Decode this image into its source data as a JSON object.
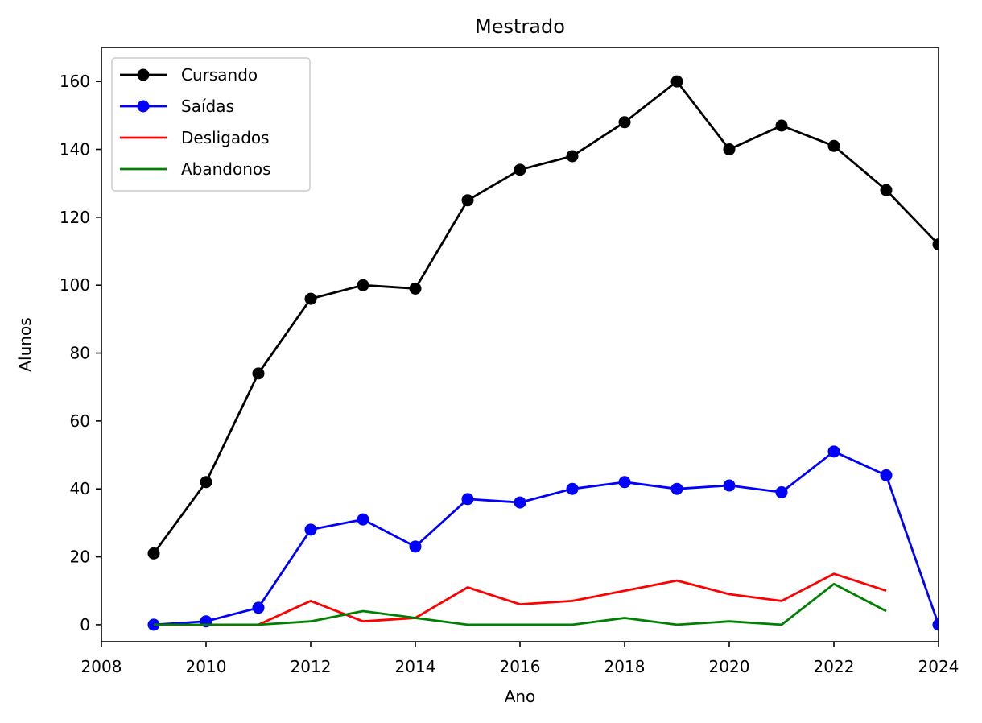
{
  "chart_data": {
    "type": "line",
    "title": "Mestrado",
    "xlabel": "Ano",
    "ylabel": "Alunos",
    "xlim": [
      2008,
      2024
    ],
    "ylim": [
      -5,
      170
    ],
    "xticks": [
      2008,
      2010,
      2012,
      2014,
      2016,
      2018,
      2020,
      2022,
      2024
    ],
    "yticks": [
      0,
      20,
      40,
      60,
      80,
      100,
      120,
      140,
      160
    ],
    "grid": false,
    "legend_position": "top-left",
    "series": [
      {
        "name": "Cursando",
        "color": "#000000",
        "markers": true,
        "x": [
          2009,
          2010,
          2011,
          2012,
          2013,
          2014,
          2015,
          2016,
          2017,
          2018,
          2019,
          2020,
          2021,
          2022,
          2023,
          2024
        ],
        "y": [
          21,
          42,
          74,
          96,
          100,
          99,
          125,
          134,
          138,
          148,
          160,
          140,
          147,
          141,
          128,
          112
        ]
      },
      {
        "name": "Saídas",
        "color": "#0000ff",
        "markers": true,
        "x": [
          2009,
          2010,
          2011,
          2012,
          2013,
          2014,
          2015,
          2016,
          2017,
          2018,
          2019,
          2020,
          2021,
          2022,
          2023,
          2024
        ],
        "y": [
          0,
          1,
          5,
          28,
          31,
          23,
          37,
          36,
          40,
          42,
          40,
          41,
          39,
          51,
          44,
          0
        ]
      },
      {
        "name": "Desligados",
        "color": "#ff0000",
        "markers": false,
        "x": [
          2009,
          2010,
          2011,
          2012,
          2013,
          2014,
          2015,
          2016,
          2017,
          2018,
          2019,
          2020,
          2021,
          2022,
          2023
        ],
        "y": [
          0,
          0,
          0,
          7,
          1,
          2,
          11,
          6,
          7,
          10,
          13,
          9,
          7,
          15,
          10
        ]
      },
      {
        "name": "Abandonos",
        "color": "#008000",
        "markers": false,
        "x": [
          2009,
          2010,
          2011,
          2012,
          2013,
          2014,
          2015,
          2016,
          2017,
          2018,
          2019,
          2020,
          2021,
          2022,
          2023
        ],
        "y": [
          0,
          0,
          0,
          1,
          4,
          2,
          0,
          0,
          0,
          2,
          0,
          1,
          0,
          12,
          4
        ]
      }
    ]
  }
}
